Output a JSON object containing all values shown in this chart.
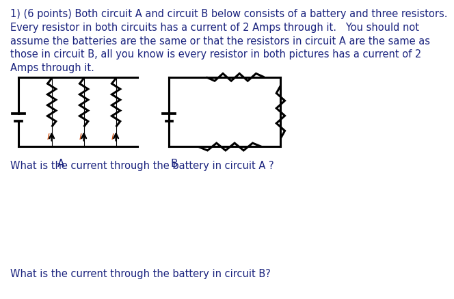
{
  "title_text": "1) (6 points) Both circuit A and circuit B below consists of a battery and three resistors.\nEvery resistor in both circuits has a current of 2 Amps through it.   You should not\nassume the batteries are the same or that the resistors in circuit A are the same as\nthose in circuit B, all you know is every resistor in both pictures has a current of 2\nAmps through it.",
  "question_a": "What is the current through the battery in circuit A ?",
  "question_b": "What is the current through the battery in circuit B?",
  "label_a": "A",
  "label_b": "B",
  "bg_color": "#ffffff",
  "text_color": "#1a237e",
  "line_color": "#000000",
  "font_size": 10.5,
  "label_font_size": 11,
  "current_label_color": "#cc4400"
}
